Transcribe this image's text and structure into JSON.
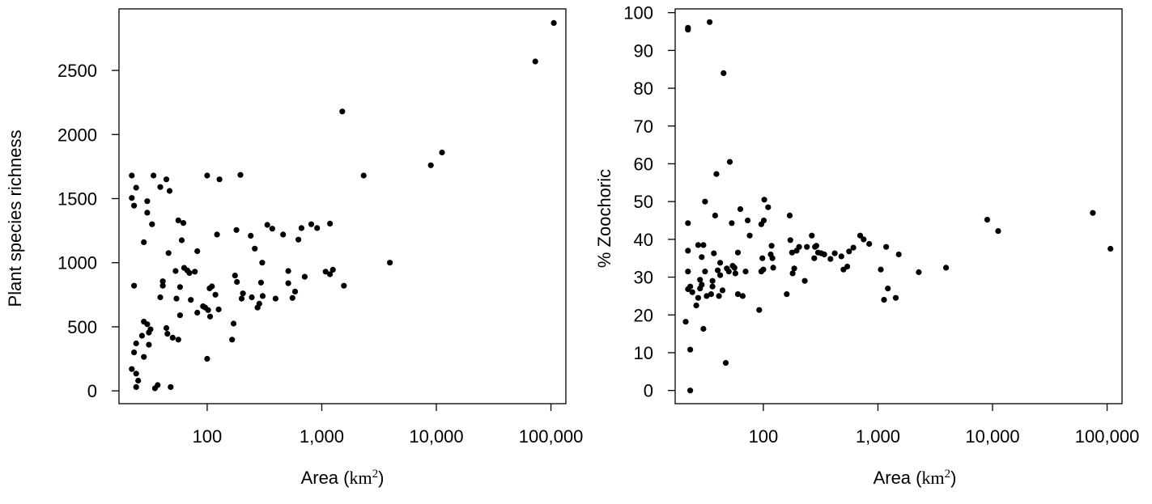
{
  "chart_data": [
    {
      "type": "scatter",
      "xlabel": "Area (",
      "xlabel_unit": "km",
      "xlabel_sup": "2",
      "xlabel_close": ")",
      "ylabel": "Plant species richness",
      "xscale": "log",
      "xlim": [
        17,
        135000
      ],
      "ylim": [
        -100,
        2980
      ],
      "xticks": [
        {
          "value": 100,
          "label": "100"
        },
        {
          "value": 1000,
          "label": "1,000"
        },
        {
          "value": 10000,
          "label": "10,000"
        },
        {
          "value": 100000,
          "label": "100,000"
        }
      ],
      "yticks": [
        {
          "value": 0,
          "label": "0"
        },
        {
          "value": 500,
          "label": "500"
        },
        {
          "value": 1000,
          "label": "1000"
        },
        {
          "value": 1500,
          "label": "1500"
        },
        {
          "value": 2000,
          "label": "2000"
        },
        {
          "value": 2500,
          "label": "2500"
        }
      ],
      "marker_color": "#000000",
      "points": [
        [
          22,
          1680
        ],
        [
          22,
          1505
        ],
        [
          23,
          1445
        ],
        [
          24,
          1585
        ],
        [
          23,
          820
        ],
        [
          22,
          170
        ],
        [
          23,
          300
        ],
        [
          24,
          370
        ],
        [
          24,
          135
        ],
        [
          24,
          30
        ],
        [
          25,
          80
        ],
        [
          27,
          430
        ],
        [
          28,
          1160
        ],
        [
          28,
          540
        ],
        [
          28,
          265
        ],
        [
          30,
          520
        ],
        [
          30,
          1390
        ],
        [
          30,
          1480
        ],
        [
          31,
          360
        ],
        [
          31,
          455
        ],
        [
          32,
          480
        ],
        [
          33,
          1300
        ],
        [
          34,
          1680
        ],
        [
          35,
          20
        ],
        [
          37,
          45
        ],
        [
          39,
          730
        ],
        [
          39,
          1590
        ],
        [
          41,
          820
        ],
        [
          41,
          855
        ],
        [
          44,
          1650
        ],
        [
          44,
          490
        ],
        [
          45,
          445
        ],
        [
          46,
          1075
        ],
        [
          47,
          1560
        ],
        [
          48,
          30
        ],
        [
          50,
          415
        ],
        [
          53,
          935
        ],
        [
          54,
          720
        ],
        [
          56,
          1330
        ],
        [
          56,
          400
        ],
        [
          58,
          590
        ],
        [
          58,
          810
        ],
        [
          60,
          1175
        ],
        [
          62,
          1310
        ],
        [
          63,
          960
        ],
        [
          67,
          940
        ],
        [
          70,
          920
        ],
        [
          72,
          710
        ],
        [
          78,
          930
        ],
        [
          82,
          610
        ],
        [
          82,
          1090
        ],
        [
          92,
          660
        ],
        [
          96,
          650
        ],
        [
          100,
          250
        ],
        [
          100,
          1680
        ],
        [
          102,
          630
        ],
        [
          105,
          800
        ],
        [
          106,
          580
        ],
        [
          110,
          815
        ],
        [
          118,
          750
        ],
        [
          122,
          1220
        ],
        [
          126,
          635
        ],
        [
          128,
          1650
        ],
        [
          165,
          400
        ],
        [
          170,
          525
        ],
        [
          175,
          900
        ],
        [
          180,
          1255
        ],
        [
          182,
          850
        ],
        [
          195,
          1685
        ],
        [
          200,
          720
        ],
        [
          205,
          760
        ],
        [
          240,
          1210
        ],
        [
          245,
          730
        ],
        [
          260,
          1110
        ],
        [
          275,
          650
        ],
        [
          285,
          680
        ],
        [
          295,
          845
        ],
        [
          302,
          1000
        ],
        [
          305,
          740
        ],
        [
          335,
          1295
        ],
        [
          370,
          1265
        ],
        [
          395,
          720
        ],
        [
          460,
          1220
        ],
        [
          510,
          840
        ],
        [
          510,
          935
        ],
        [
          555,
          725
        ],
        [
          585,
          775
        ],
        [
          625,
          1180
        ],
        [
          665,
          1270
        ],
        [
          710,
          890
        ],
        [
          810,
          1300
        ],
        [
          910,
          1270
        ],
        [
          1080,
          930
        ],
        [
          1180,
          1305
        ],
        [
          1180,
          910
        ],
        [
          1250,
          945
        ],
        [
          1510,
          2180
        ],
        [
          1560,
          820
        ],
        [
          2320,
          1680
        ],
        [
          3930,
          1000
        ],
        [
          8950,
          1760
        ],
        [
          11200,
          1860
        ],
        [
          73000,
          2570
        ],
        [
          106000,
          2870
        ]
      ]
    },
    {
      "type": "scatter",
      "xlabel": "Area (",
      "xlabel_unit": "km",
      "xlabel_sup": "2",
      "xlabel_close": ")",
      "ylabel": "% Zoochoric",
      "xscale": "log",
      "xlim": [
        17,
        135000
      ],
      "ylim": [
        -3.5,
        101
      ],
      "xticks": [
        {
          "value": 100,
          "label": "100"
        },
        {
          "value": 1000,
          "label": "1,000"
        },
        {
          "value": 10000,
          "label": "10,000"
        },
        {
          "value": 100000,
          "label": "100,000"
        }
      ],
      "yticks": [
        {
          "value": 0,
          "label": "0"
        },
        {
          "value": 10,
          "label": "10"
        },
        {
          "value": 20,
          "label": "20"
        },
        {
          "value": 30,
          "label": "30"
        },
        {
          "value": 40,
          "label": "40"
        },
        {
          "value": 50,
          "label": "50"
        },
        {
          "value": 60,
          "label": "60"
        },
        {
          "value": 70,
          "label": "70"
        },
        {
          "value": 80,
          "label": "80"
        },
        {
          "value": 90,
          "label": "90"
        },
        {
          "value": 100,
          "label": "100"
        }
      ],
      "marker_color": "#000000",
      "points": [
        [
          21,
          18.2
        ],
        [
          22,
          26.8
        ],
        [
          22,
          31.5
        ],
        [
          22,
          37
        ],
        [
          22,
          44.3
        ],
        [
          22,
          95.5
        ],
        [
          22,
          96
        ],
        [
          23,
          0
        ],
        [
          23,
          10.8
        ],
        [
          23,
          27.5
        ],
        [
          24,
          26
        ],
        [
          26,
          22.5
        ],
        [
          27,
          24.5
        ],
        [
          27,
          38.5
        ],
        [
          28,
          27
        ],
        [
          28,
          29.3
        ],
        [
          29,
          28
        ],
        [
          29,
          35.3
        ],
        [
          30,
          38.5
        ],
        [
          30,
          16.3
        ],
        [
          31,
          31.5
        ],
        [
          31,
          50
        ],
        [
          32,
          25
        ],
        [
          34,
          97.5
        ],
        [
          35,
          25.5
        ],
        [
          36,
          27.5
        ],
        [
          36,
          29
        ],
        [
          37,
          36.3
        ],
        [
          38,
          46.3
        ],
        [
          39,
          57.3
        ],
        [
          40,
          31.8
        ],
        [
          41,
          25
        ],
        [
          42,
          30.5
        ],
        [
          42,
          33.8
        ],
        [
          44,
          26.5
        ],
        [
          45,
          84
        ],
        [
          47,
          7.3
        ],
        [
          48,
          32.3
        ],
        [
          50,
          31.5
        ],
        [
          51,
          60.5
        ],
        [
          53,
          44.3
        ],
        [
          54,
          33
        ],
        [
          56,
          32.5
        ],
        [
          57,
          31
        ],
        [
          60,
          25.5
        ],
        [
          60,
          36.5
        ],
        [
          63,
          48
        ],
        [
          66,
          25
        ],
        [
          70,
          31.5
        ],
        [
          73,
          45
        ],
        [
          76,
          41
        ],
        [
          92,
          21.3
        ],
        [
          96,
          31.5
        ],
        [
          96,
          44
        ],
        [
          98,
          35
        ],
        [
          100,
          32
        ],
        [
          101,
          45
        ],
        [
          102,
          50.5
        ],
        [
          110,
          48.5
        ],
        [
          116,
          36
        ],
        [
          118,
          38.3
        ],
        [
          120,
          35
        ],
        [
          122,
          32.5
        ],
        [
          160,
          25.5
        ],
        [
          170,
          46.3
        ],
        [
          172,
          39.8
        ],
        [
          178,
          36.5
        ],
        [
          180,
          31
        ],
        [
          186,
          32.3
        ],
        [
          195,
          37
        ],
        [
          205,
          38
        ],
        [
          230,
          29
        ],
        [
          240,
          38
        ],
        [
          265,
          41
        ],
        [
          278,
          35
        ],
        [
          282,
          38
        ],
        [
          290,
          38.3
        ],
        [
          300,
          36.5
        ],
        [
          320,
          36.3
        ],
        [
          340,
          36
        ],
        [
          385,
          34.8
        ],
        [
          420,
          36.3
        ],
        [
          480,
          35.5
        ],
        [
          500,
          32
        ],
        [
          540,
          32.8
        ],
        [
          560,
          36.8
        ],
        [
          610,
          37.8
        ],
        [
          700,
          41
        ],
        [
          750,
          40
        ],
        [
          840,
          38.8
        ],
        [
          1060,
          32
        ],
        [
          1130,
          24
        ],
        [
          1180,
          38
        ],
        [
          1220,
          27
        ],
        [
          1430,
          24.5
        ],
        [
          1520,
          36
        ],
        [
          2270,
          31.3
        ],
        [
          3930,
          32.5
        ],
        [
          9000,
          45.2
        ],
        [
          11200,
          42.2
        ],
        [
          75000,
          47
        ],
        [
          107000,
          37.5
        ]
      ]
    }
  ]
}
